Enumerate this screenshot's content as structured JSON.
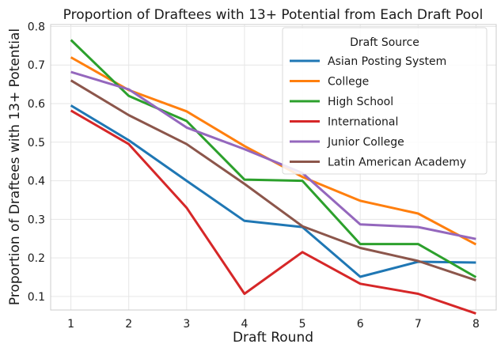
{
  "chart_data": {
    "type": "line",
    "title": "Proportion of Draftees with 13+ Potential from Each Draft Pool",
    "xlabel": "Draft Round",
    "ylabel": "Proportion of Draftees with 13+ Potential",
    "x": [
      1,
      2,
      3,
      4,
      5,
      6,
      7,
      8
    ],
    "xticks": [
      "1",
      "2",
      "3",
      "4",
      "5",
      "6",
      "7",
      "8"
    ],
    "yticks": [
      "0.1",
      "0.2",
      "0.3",
      "0.4",
      "0.5",
      "0.6",
      "0.7",
      "0.8"
    ],
    "xlim": [
      0.65,
      8.35
    ],
    "ylim": [
      0.065,
      0.805
    ],
    "grid": true,
    "legend": {
      "title": "Draft Source",
      "placement": "top-right"
    },
    "series": [
      {
        "name": "Asian Posting System",
        "color": "#1f77b4",
        "values": [
          0.595,
          0.505,
          0.4,
          0.296,
          0.28,
          0.151,
          0.19,
          0.188
        ]
      },
      {
        "name": "College",
        "color": "#ff7f0e",
        "values": [
          0.72,
          0.635,
          0.58,
          0.49,
          0.41,
          0.348,
          0.315,
          0.235
        ]
      },
      {
        "name": "High School",
        "color": "#2ca02c",
        "values": [
          0.765,
          0.62,
          0.555,
          0.403,
          0.4,
          0.236,
          0.236,
          0.15
        ]
      },
      {
        "name": "International",
        "color": "#d62728",
        "values": [
          0.582,
          0.495,
          0.33,
          0.107,
          0.215,
          0.133,
          0.107,
          0.056
        ]
      },
      {
        "name": "Junior College",
        "color": "#9467bd",
        "values": [
          0.682,
          0.637,
          0.538,
          0.482,
          0.42,
          0.287,
          0.28,
          0.249
        ]
      },
      {
        "name": "Latin American Academy",
        "color": "#8c564b",
        "values": [
          0.66,
          0.57,
          0.495,
          0.392,
          0.282,
          0.226,
          0.192,
          0.142
        ]
      }
    ]
  }
}
